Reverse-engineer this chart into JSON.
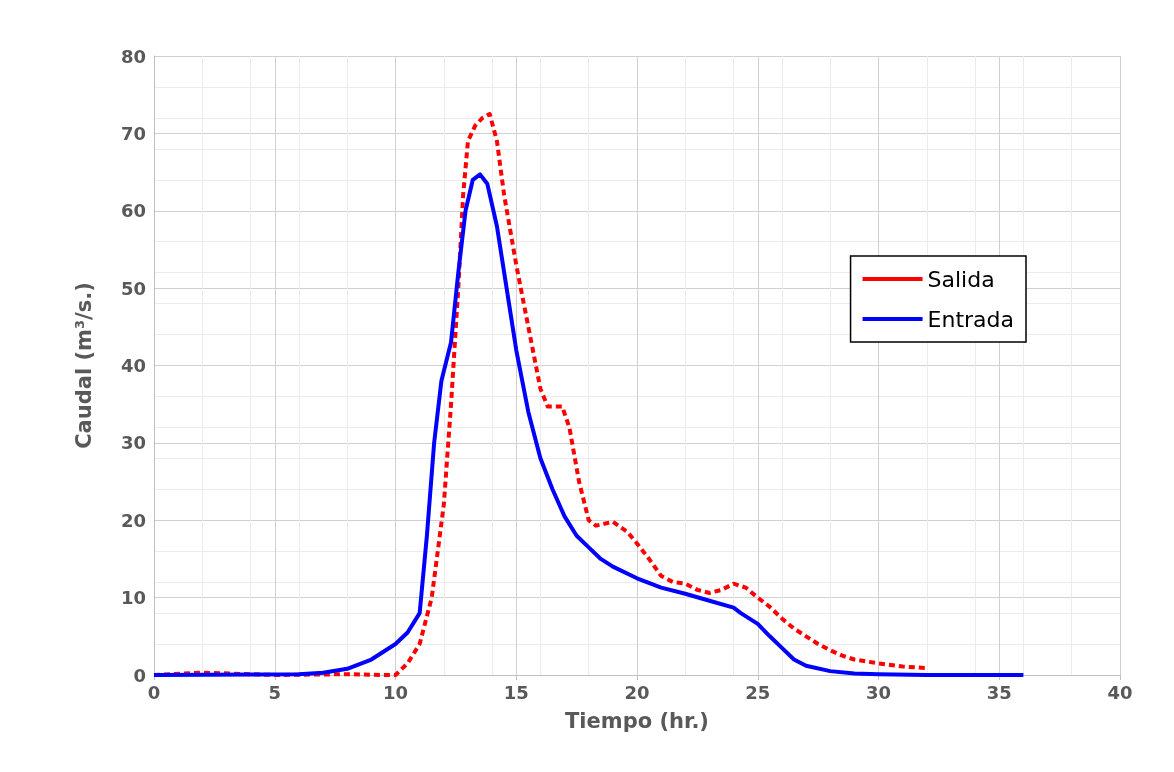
{
  "chart_data": {
    "type": "line",
    "xlabel": "Tiempo (hr.)",
    "ylabel": "Caudal (m³/s.)",
    "xlim": [
      0,
      40
    ],
    "xticks": [
      0,
      5,
      10,
      15,
      20,
      25,
      30,
      35,
      40
    ],
    "ylim": [
      0,
      80
    ],
    "yticks": [
      0,
      10,
      20,
      30,
      40,
      50,
      60,
      70,
      80
    ],
    "grid": true,
    "legend": "right",
    "marker": "none",
    "series": [
      {
        "name": "Salida",
        "color": "#ff0000",
        "line_style": "dashed",
        "x": [
          0,
          2,
          5,
          8,
          9.5,
          10,
          10.5,
          11,
          11.5,
          12,
          12.3,
          12.6,
          12.8,
          13,
          13.3,
          13.6,
          13.9,
          14.2,
          14.5,
          15,
          15.5,
          16,
          16.3,
          16.9,
          17.2,
          17.6,
          18,
          18.3,
          19,
          19.6,
          20,
          20.5,
          21,
          21.5,
          22,
          22.5,
          23,
          23.5,
          24,
          24.5,
          25,
          25.5,
          26,
          26.5,
          27,
          27.5,
          28,
          28.5,
          29,
          30,
          31,
          32
        ],
        "values": [
          0,
          0.3,
          0,
          0.1,
          0,
          0,
          1.5,
          4,
          10,
          22,
          35,
          50,
          62,
          69,
          71,
          72,
          72.5,
          69,
          62,
          53,
          45,
          37,
          34.7,
          34.7,
          32,
          25,
          20,
          19.3,
          19.8,
          18.5,
          17,
          15,
          12.8,
          12,
          11.8,
          11,
          10.6,
          11,
          11.8,
          11.3,
          10,
          8.8,
          7.3,
          6,
          5,
          4,
          3.2,
          2.5,
          2,
          1.5,
          1.1,
          0.9
        ]
      },
      {
        "name": "Entrada",
        "color": "#0000ff",
        "line_style": "solid",
        "x": [
          0,
          6,
          7,
          8,
          9,
          10,
          10.5,
          11,
          11.3,
          11.6,
          11.9,
          12.3,
          12.6,
          12.9,
          13.2,
          13.5,
          13.8,
          14.2,
          14.6,
          15,
          15.5,
          16,
          16.5,
          17,
          17.5,
          18,
          18.5,
          19,
          20,
          21,
          22,
          23,
          24,
          24.3,
          25,
          25.5,
          26,
          26.5,
          27,
          28,
          29,
          30,
          32,
          36
        ],
        "values": [
          0,
          0.1,
          0.3,
          0.8,
          2,
          4,
          5.5,
          8,
          18,
          30,
          38,
          43,
          52,
          60,
          64,
          64.7,
          63.5,
          58,
          50,
          42,
          34,
          28,
          24,
          20.5,
          18,
          16.5,
          15,
          14,
          12.5,
          11.3,
          10.5,
          9.6,
          8.7,
          8,
          6.6,
          5,
          3.5,
          2,
          1.2,
          0.5,
          0.2,
          0.1,
          0,
          0
        ]
      }
    ]
  }
}
